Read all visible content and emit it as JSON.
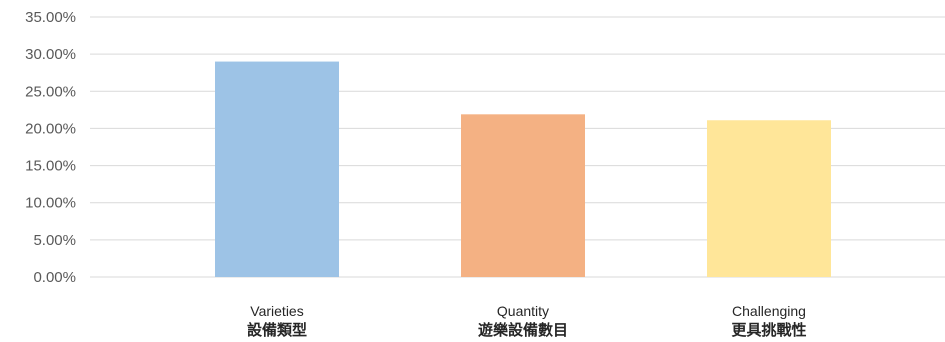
{
  "chart_data": {
    "type": "bar",
    "title": "",
    "xlabel": "",
    "ylabel": "",
    "ylim": [
      0,
      35
    ],
    "ytick_step": 5,
    "ytick_labels": [
      "0.00%",
      "5.00%",
      "10.00%",
      "15.00%",
      "20.00%",
      "25.00%",
      "30.00%",
      "35.00%"
    ],
    "grid": true,
    "legend": "none",
    "categories": [
      {
        "label": "Varieties",
        "sublabel": "設備類型",
        "value": 29.0,
        "color": "#9dc3e6"
      },
      {
        "label": "Quantity",
        "sublabel": "遊樂設備數目",
        "value": 21.9,
        "color": "#f4b183"
      },
      {
        "label": "Challenging",
        "sublabel": "更具挑戰性",
        "value": 21.1,
        "color": "#ffe699"
      }
    ]
  }
}
